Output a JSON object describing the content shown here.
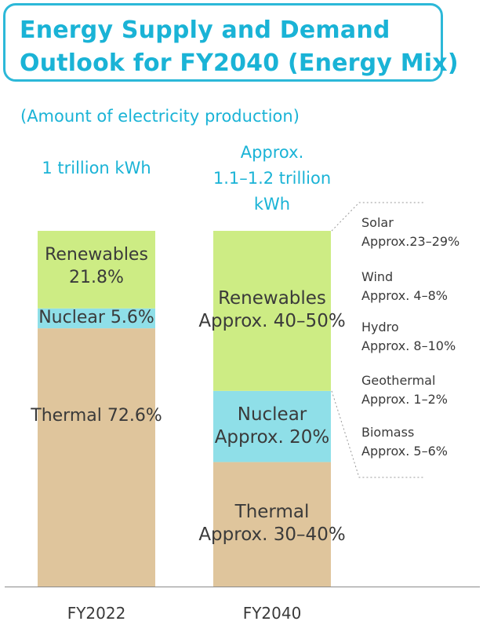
{
  "title_lines": [
    "Energy Supply and Demand",
    "Outlook for FY2040 (Energy Mix)"
  ],
  "subtitle": "(Amount of electricity production)",
  "colors": {
    "accent": "#1ab3d6",
    "renewables": "#cdec84",
    "nuclear": "#8fdfe8",
    "thermal": "#dfc59c"
  },
  "chart_data": {
    "type": "bar",
    "stacked": true,
    "categories": [
      "FY2022",
      "FY2040"
    ],
    "totals": [
      "1 trillion kWh",
      "Approx.\n1.1–1.2 trillion\nkWh"
    ],
    "series": [
      {
        "name": "Thermal",
        "values": [
          72.6,
          35
        ],
        "labels": [
          "Thermal 72.6%",
          "Thermal\nApprox. 30–40%"
        ]
      },
      {
        "name": "Nuclear",
        "values": [
          5.6,
          20
        ],
        "labels": [
          "Nuclear 5.6%",
          "Nuclear\nApprox. 20%"
        ]
      },
      {
        "name": "Renewables",
        "values": [
          21.8,
          45
        ],
        "labels": [
          "Renewables\n21.8%",
          "Renewables\nApprox. 40–50%"
        ]
      }
    ],
    "renewables_breakdown": [
      {
        "name": "Solar",
        "value": "Approx.23–29%"
      },
      {
        "name": "Wind",
        "value": "Approx. 4–8%"
      },
      {
        "name": "Hydro",
        "value": "Approx. 8–10%"
      },
      {
        "name": "Geothermal",
        "value": "Approx. 1–2%"
      },
      {
        "name": "Biomass",
        "value": "Approx. 5–6%"
      }
    ]
  }
}
